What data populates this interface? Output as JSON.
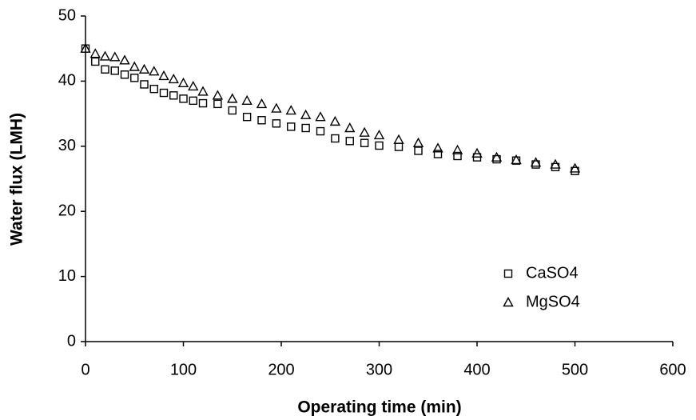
{
  "chart_data": {
    "type": "scatter",
    "xlabel": "Operating time (min)",
    "ylabel": "Water flux (LMH)",
    "xlim": [
      0,
      600
    ],
    "xticks": [
      0,
      100,
      200,
      300,
      400,
      500,
      600
    ],
    "ylim": [
      0,
      50
    ],
    "yticks": [
      0,
      10,
      20,
      30,
      40,
      50
    ],
    "legend": "lower right",
    "series": [
      {
        "name": "CaSO4",
        "marker": "square",
        "color": "#000000",
        "x": [
          0,
          10,
          20,
          30,
          40,
          50,
          60,
          70,
          80,
          90,
          100,
          110,
          120,
          135,
          150,
          165,
          180,
          195,
          210,
          225,
          240,
          255,
          270,
          285,
          300,
          320,
          340,
          360,
          380,
          400,
          420,
          440,
          460,
          480,
          500
        ],
        "values": [
          45,
          43,
          41.8,
          41.6,
          41,
          40.5,
          39.5,
          38.8,
          38.2,
          37.8,
          37.3,
          37,
          36.6,
          36.5,
          35.5,
          34.5,
          34,
          33.5,
          33,
          32.8,
          32.3,
          31.2,
          30.8,
          30.5,
          30.1,
          29.9,
          29.3,
          28.8,
          28.5,
          28.3,
          28,
          27.8,
          27.2,
          26.8,
          26.2
        ]
      },
      {
        "name": "MgSO4",
        "marker": "triangle",
        "color": "#000000",
        "x": [
          0,
          10,
          20,
          30,
          40,
          50,
          60,
          70,
          80,
          90,
          100,
          110,
          120,
          135,
          150,
          165,
          180,
          195,
          210,
          225,
          240,
          255,
          270,
          285,
          300,
          320,
          340,
          360,
          380,
          400,
          420,
          440,
          460,
          480,
          500
        ],
        "values": [
          45,
          44.2,
          43.8,
          43.7,
          43.2,
          42.2,
          41.8,
          41.5,
          40.8,
          40.3,
          39.7,
          39.2,
          38.4,
          37.8,
          37.3,
          37,
          36.5,
          35.8,
          35.5,
          34.8,
          34.5,
          33.8,
          32.8,
          32.1,
          31.7,
          31,
          30.5,
          29.7,
          29.4,
          28.9,
          28.3,
          27.9,
          27.5,
          27.2,
          26.6
        ]
      }
    ]
  }
}
